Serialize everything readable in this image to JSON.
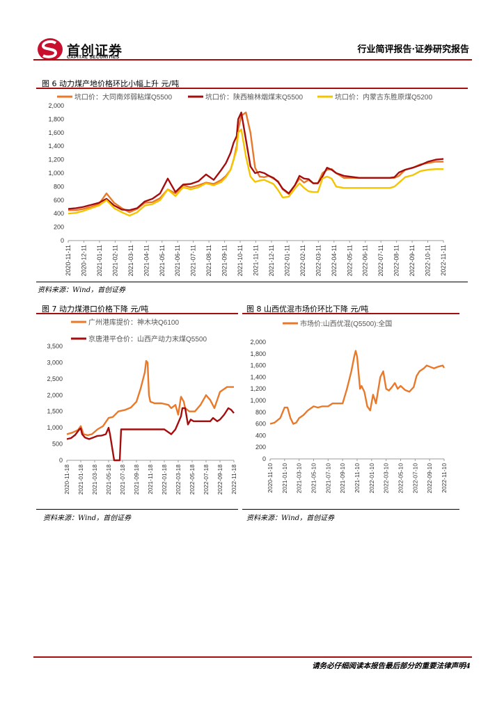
{
  "header": {
    "company_cn": "首创证券",
    "company_en": "CAPITAL SECURITIES",
    "report_type": "行业简评报告·证券研究报告",
    "brand_color": "#a30d0d"
  },
  "figures": {
    "fig6": {
      "title": "图 6  动力煤产地价格环比小幅上升  元/吨",
      "source": "资料来源：Wind，首创证券"
    },
    "fig7": {
      "title": "图 7 动力煤港口价格下降  元/吨",
      "source": "资料来源：Wind，首创证券"
    },
    "fig8": {
      "title": "图 8  山西优混市场价环比下降  元/吨",
      "source": "资料来源：Wind，首创证券"
    }
  },
  "footer": {
    "text": "请务必仔细阅读本报告最后部分的重要法律声明4"
  },
  "chart_data": [
    {
      "id": "fig6",
      "type": "line",
      "title": "动力煤产地价格环比小幅上升 元/吨",
      "ylim": [
        0,
        2000
      ],
      "yticks": [
        "0",
        "200",
        "400",
        "600",
        "800",
        "1,000",
        "1,200",
        "1,400",
        "1,600",
        "1,800",
        "2,000"
      ],
      "x_tick_labels": [
        "2020-11-11",
        "2020-12-11",
        "2021-01-11",
        "2021-02-11",
        "2021-03-11",
        "2021-04-11",
        "2021-05-11",
        "2021-06-11",
        "2021-07-11",
        "2021-08-11",
        "2021-09-11",
        "2021-10-11",
        "2021-11-11",
        "2021-12-11",
        "2022-01-11",
        "2022-02-11",
        "2022-03-11",
        "2022-04-11",
        "2022-05-11",
        "2022-06-11",
        "2022-07-11",
        "2022-08-11",
        "2022-09-11",
        "2022-10-11",
        "2022-11-11"
      ],
      "legend_position": "top",
      "series": [
        {
          "name": "坑口价：大同南郊弱粘煤Q5500",
          "color": "#e8792a",
          "x": [
            0,
            0.5,
            1,
            1.5,
            2,
            2.5,
            3,
            3.5,
            4,
            4.5,
            5,
            5.5,
            6,
            6.5,
            7,
            7.5,
            8,
            8.5,
            9,
            9.5,
            10,
            10.3,
            10.6,
            10.8,
            11,
            11.1,
            11.3,
            11.6,
            11.9,
            12.2,
            12.5,
            12.8,
            13.1,
            13.4,
            13.7,
            14,
            14.4,
            14.8,
            15.1,
            15.4,
            15.7,
            16,
            16.3,
            16.6,
            16.9,
            17.2,
            17.5,
            18,
            19,
            20,
            21,
            21.3,
            21.6,
            22,
            22.5,
            23,
            23.5,
            24,
            24.5
          ],
          "values": [
            450,
            450,
            470,
            500,
            540,
            700,
            560,
            480,
            420,
            470,
            560,
            570,
            630,
            760,
            700,
            820,
            790,
            820,
            860,
            840,
            900,
            960,
            1050,
            1200,
            1400,
            1650,
            1850,
            1900,
            1600,
            1080,
            950,
            940,
            960,
            920,
            880,
            760,
            690,
            820,
            920,
            860,
            900,
            850,
            850,
            1000,
            1050,
            1060,
            1000,
            930,
            930,
            930,
            930,
            930,
            960,
            1050,
            1080,
            1130,
            1150,
            1170,
            1170
          ]
        },
        {
          "name": "坑口价：陕西榆林烟煤末Q5500",
          "color": "#a30d0d",
          "x": [
            0,
            0.5,
            1,
            1.5,
            2,
            2.5,
            3,
            3.5,
            4,
            4.5,
            5,
            5.5,
            6,
            6.5,
            7,
            7.5,
            8,
            8.5,
            9,
            9.5,
            10,
            10.3,
            10.6,
            10.8,
            11,
            11.1,
            11.3,
            11.6,
            11.9,
            12.2,
            12.5,
            12.8,
            13.1,
            13.4,
            13.7,
            14,
            14.4,
            14.8,
            15.1,
            15.4,
            15.7,
            16,
            16.3,
            16.6,
            16.9,
            17.2,
            17.5,
            18,
            19,
            20,
            21,
            21.3,
            21.6,
            22,
            22.5,
            23,
            23.5,
            24,
            24.5
          ],
          "values": [
            470,
            480,
            500,
            530,
            560,
            620,
            520,
            460,
            450,
            480,
            580,
            620,
            700,
            920,
            720,
            830,
            840,
            880,
            980,
            900,
            1050,
            1150,
            1300,
            1450,
            1550,
            1800,
            1900,
            1500,
            1100,
            1000,
            1020,
            1000,
            960,
            930,
            870,
            770,
            700,
            820,
            960,
            920,
            910,
            850,
            850,
            950,
            1080,
            1050,
            1000,
            960,
            930,
            930,
            930,
            940,
            1010,
            1050,
            1080,
            1120,
            1170,
            1200,
            1210
          ]
        },
        {
          "name": "坑口价：内蒙古东胜原煤Q5200",
          "color": "#f5c400",
          "x": [
            0,
            0.5,
            1,
            1.5,
            2,
            2.5,
            3,
            3.5,
            4,
            4.5,
            5,
            5.5,
            6,
            6.5,
            7,
            7.5,
            8,
            8.5,
            9,
            9.5,
            10,
            10.3,
            10.6,
            10.8,
            11,
            11.1,
            11.3,
            11.6,
            11.9,
            12.2,
            12.5,
            12.8,
            13.1,
            13.4,
            13.7,
            14,
            14.4,
            14.8,
            15.1,
            15.4,
            15.7,
            16,
            16.3,
            16.6,
            16.9,
            17.2,
            17.5,
            18,
            19,
            20,
            21,
            21.3,
            21.6,
            22,
            22.5,
            23,
            23.5,
            24,
            24.5
          ],
          "values": [
            400,
            410,
            440,
            480,
            520,
            600,
            480,
            420,
            370,
            420,
            520,
            540,
            600,
            760,
            660,
            790,
            760,
            790,
            850,
            820,
            870,
            940,
            1050,
            1200,
            1350,
            1600,
            1650,
            1250,
            950,
            870,
            890,
            900,
            870,
            840,
            750,
            640,
            650,
            770,
            850,
            780,
            730,
            720,
            720,
            920,
            950,
            920,
            800,
            780,
            780,
            780,
            780,
            800,
            860,
            940,
            970,
            1030,
            1050,
            1060,
            1060
          ]
        }
      ]
    },
    {
      "id": "fig7",
      "type": "line",
      "title": "动力煤港口价格下降 元/吨",
      "ylim": [
        0,
        3500
      ],
      "yticks": [
        "0",
        "500",
        "1,000",
        "1,500",
        "2,000",
        "2,500",
        "3,000",
        "3,500"
      ],
      "x_tick_labels": [
        "2020-11-18",
        "2021-01-18",
        "2021-03-18",
        "2021-05-18",
        "2021-07-18",
        "2021-09-18",
        "2021-11-18",
        "2022-01-18",
        "2022-03-18",
        "2022-05-18",
        "2022-07-18",
        "2022-09-18",
        "2022-11-18"
      ],
      "legend_position": "top-left",
      "series": [
        {
          "name": "广州港库提价：神木块Q6100",
          "color": "#e8792a",
          "x": [
            0,
            0.4,
            0.8,
            1.0,
            1.2,
            1.5,
            1.8,
            2.2,
            2.6,
            3.0,
            3.3,
            3.7,
            4.2,
            4.6,
            5.0,
            5.3,
            5.6,
            5.7,
            5.8,
            5.9,
            6.0,
            6.3,
            6.8,
            7.3,
            7.5,
            7.8,
            8.0,
            8.2,
            8.4,
            8.5,
            8.8,
            9.2,
            9.6,
            10.0,
            10.3,
            10.6,
            11.0,
            11.5,
            12.0
          ],
          "values": [
            800,
            850,
            930,
            1050,
            800,
            770,
            800,
            950,
            1050,
            1300,
            1330,
            1500,
            1550,
            1620,
            1800,
            2200,
            2700,
            3050,
            3000,
            2000,
            1800,
            1750,
            1750,
            1700,
            1600,
            1700,
            1400,
            1950,
            1800,
            1600,
            1500,
            1500,
            1700,
            2000,
            1850,
            1600,
            2100,
            2250,
            2250
          ]
        },
        {
          "name": "京唐港平仓价：山西产动力末煤Q5500",
          "color": "#a30d0d",
          "x": [
            0,
            0.3,
            0.6,
            0.9,
            1.0,
            1.1,
            1.3,
            1.6,
            1.9,
            2.2,
            2.5,
            2.8,
            3.0,
            3.1,
            3.4,
            3.5,
            3.8,
            3.9,
            6.5,
            7.0,
            7.5,
            7.8,
            8.0,
            8.2,
            8.3,
            8.5,
            8.7,
            8.9,
            9.1,
            9.3,
            9.8,
            10.3,
            10.5,
            10.8,
            11.0,
            11.3,
            11.6,
            11.8,
            12.0
          ],
          "values": [
            650,
            680,
            780,
            950,
            980,
            800,
            700,
            650,
            700,
            750,
            760,
            800,
            1000,
            800,
            0,
            0,
            0,
            950,
            950,
            950,
            800,
            950,
            1150,
            1350,
            1600,
            1600,
            1100,
            1250,
            1200,
            1200,
            1200,
            1200,
            1300,
            1200,
            1250,
            1400,
            1600,
            1550,
            1450
          ]
        }
      ]
    },
    {
      "id": "fig8",
      "type": "line",
      "title": "山西优混市场价环比下降 元/吨",
      "ylim": [
        0,
        2000
      ],
      "yticks": [
        "0",
        "200",
        "400",
        "600",
        "800",
        "1,000",
        "1,200",
        "1,400",
        "1,600",
        "1,800",
        "2,000"
      ],
      "x_tick_labels": [
        "2020-11-10",
        "2021-01-10",
        "2021-03-10",
        "2021-05-10",
        "2021-07-10",
        "2021-09-10",
        "2021-11-10",
        "2022-01-10",
        "2022-03-10",
        "2022-05-10",
        "2022-07-10",
        "2022-09-10",
        "2022-11-10"
      ],
      "legend_position": "top",
      "series": [
        {
          "name": "市场价:山西优混(Q5500):全国",
          "color": "#e8792a",
          "x": [
            0,
            0.3,
            0.7,
            1.0,
            1.2,
            1.4,
            1.6,
            1.8,
            2.0,
            2.3,
            2.6,
            3.0,
            3.3,
            3.6,
            4.0,
            4.3,
            4.6,
            5.0,
            5.3,
            5.6,
            5.8,
            5.9,
            6.0,
            6.2,
            6.3,
            6.5,
            6.7,
            6.9,
            7.1,
            7.3,
            7.6,
            7.8,
            8.0,
            8.2,
            8.4,
            8.6,
            8.8,
            9.0,
            9.3,
            9.6,
            9.9,
            10.1,
            10.3,
            10.6,
            10.8,
            11.0,
            11.3,
            11.6,
            11.9,
            12.0
          ],
          "values": [
            600,
            620,
            700,
            880,
            880,
            700,
            600,
            620,
            700,
            750,
            830,
            900,
            880,
            900,
            900,
            950,
            950,
            950,
            1200,
            1500,
            1750,
            1850,
            1750,
            1200,
            1250,
            1150,
            900,
            830,
            1100,
            950,
            1400,
            1500,
            1200,
            1170,
            1230,
            1300,
            1200,
            1250,
            1180,
            1150,
            1230,
            1420,
            1500,
            1550,
            1600,
            1580,
            1550,
            1580,
            1600,
            1560
          ]
        }
      ]
    }
  ]
}
